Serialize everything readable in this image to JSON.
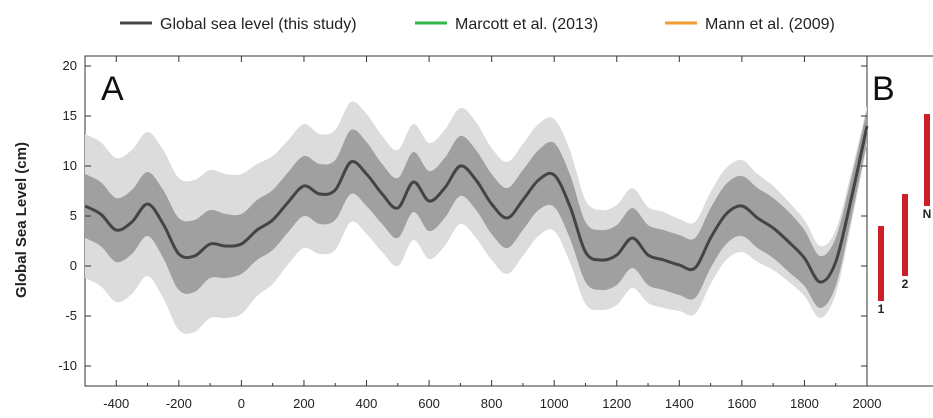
{
  "legend": [
    {
      "label": "Global sea level (this study)",
      "color": "#444444"
    },
    {
      "label": "Marcott et al. (2013)",
      "color": "#2fb84a"
    },
    {
      "label": "Mann et al. (2009)",
      "color": "#f39a32"
    }
  ],
  "colors": {
    "line": "#444444",
    "band_inner": "#a0a0a0",
    "band_outer": "#dcdcdc",
    "bars": "#cc1f2a"
  },
  "chart_data": [
    {
      "panel": "A",
      "type": "line",
      "ylabel": "Global Sea Level (cm)",
      "xlim": [
        -500,
        2000
      ],
      "ylim": [
        -12,
        21
      ],
      "xticks": [
        -400,
        -200,
        0,
        200,
        400,
        600,
        800,
        1000,
        1200,
        1400,
        1600,
        1800,
        2000
      ],
      "yticks": [
        -10,
        -5,
        0,
        5,
        10,
        15,
        20
      ],
      "grid": false,
      "legend_position": "top",
      "series": [
        {
          "name": "Global sea level (this study)",
          "x": [
            -500,
            -450,
            -400,
            -350,
            -300,
            -250,
            -200,
            -150,
            -100,
            -50,
            0,
            50,
            100,
            150,
            200,
            250,
            300,
            350,
            400,
            450,
            500,
            550,
            600,
            650,
            700,
            750,
            800,
            850,
            900,
            950,
            1000,
            1050,
            1100,
            1150,
            1200,
            1250,
            1300,
            1350,
            1400,
            1450,
            1500,
            1550,
            1600,
            1650,
            1700,
            1750,
            1800,
            1850,
            1900,
            1950,
            2000
          ],
          "y": [
            6,
            5.2,
            3.6,
            4.4,
            6.2,
            4.2,
            1.2,
            1.0,
            2.2,
            2.0,
            2.2,
            3.6,
            4.6,
            6.4,
            8.0,
            7.2,
            7.6,
            10.4,
            9.2,
            7.2,
            5.8,
            8.4,
            6.5,
            7.8,
            10.0,
            8.6,
            6.2,
            4.8,
            6.6,
            8.6,
            9.1,
            6.0,
            1.4,
            0.6,
            1.1,
            2.8,
            1.1,
            0.6,
            0.1,
            -0.2,
            2.8,
            5.2,
            6.0,
            4.8,
            3.8,
            2.4,
            0.8,
            -1.6,
            0.4,
            6.8,
            14.0
          ],
          "inner_band_halfwidth_cm": [
            3.2,
            3.2,
            3.2,
            3.2,
            3.2,
            3.4,
            3.6,
            3.6,
            3.4,
            3.2,
            3.0,
            3.0,
            3.0,
            3.0,
            3.0,
            3.0,
            3.0,
            3.2,
            3.2,
            3.0,
            3.0,
            3.0,
            3.0,
            3.0,
            3.0,
            3.0,
            3.0,
            3.0,
            3.0,
            3.0,
            3.2,
            3.2,
            3.0,
            3.0,
            3.0,
            3.0,
            3.0,
            3.0,
            3.0,
            3.0,
            3.0,
            3.0,
            3.0,
            3.0,
            3.0,
            3.0,
            2.8,
            2.6,
            2.4,
            2.0,
            1.6
          ],
          "outer_band_halfwidth_cm": [
            7.2,
            7.2,
            7.2,
            7.2,
            7.2,
            7.4,
            7.6,
            7.6,
            7.4,
            7.2,
            7.0,
            6.6,
            6.4,
            6.2,
            6.2,
            6.0,
            6.0,
            6.0,
            6.0,
            5.8,
            5.8,
            5.8,
            5.8,
            5.8,
            5.8,
            5.8,
            5.6,
            5.6,
            5.6,
            5.6,
            5.6,
            5.6,
            5.2,
            5.0,
            5.0,
            5.0,
            4.8,
            4.8,
            4.6,
            4.6,
            4.6,
            4.6,
            4.6,
            4.4,
            4.2,
            4.0,
            3.8,
            3.6,
            3.2,
            2.6,
            2.0
          ]
        }
      ]
    },
    {
      "panel": "B",
      "type": "bar",
      "ylim": [
        -12,
        21
      ],
      "bars": [
        {
          "label": "1",
          "low": -3.5,
          "high": 4.0
        },
        {
          "label": "2",
          "low": -1.0,
          "high": 7.2
        },
        {
          "label": "N",
          "low": 6.0,
          "high": 15.2
        }
      ]
    }
  ]
}
